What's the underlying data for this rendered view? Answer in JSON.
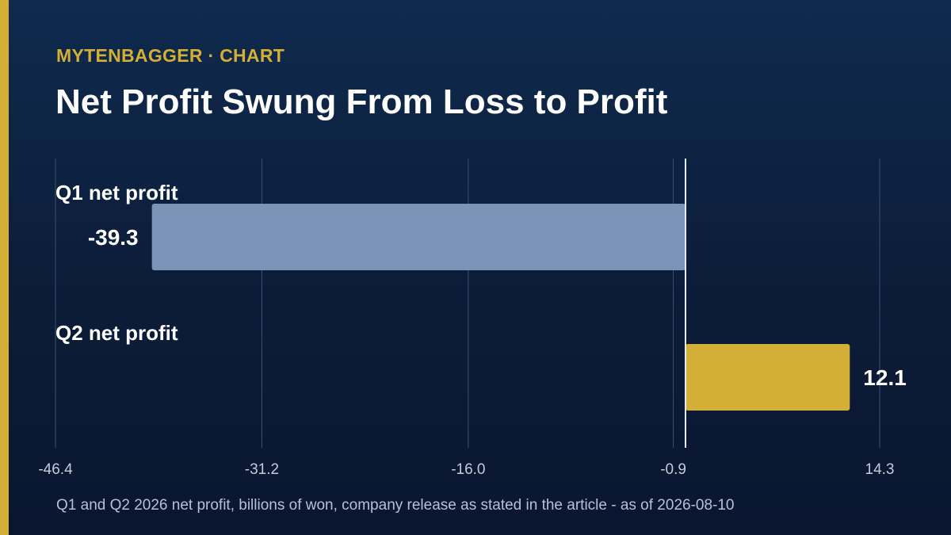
{
  "header": {
    "kicker": "MYTENBAGGER · CHART",
    "title": "Net Profit Swung From Loss to Profit"
  },
  "footnote": "Q1 and Q2 2026 net profit, billions of won, company release as stated in the article - as of 2026-08-10",
  "colors": {
    "accent": "#d4af37",
    "negative_bar": "#7b93b6",
    "positive_bar": "#d4af37",
    "background": "#0d1f3c"
  },
  "chart_data": {
    "type": "bar",
    "orientation": "horizontal",
    "categories": [
      "Q1 net profit",
      "Q2 net profit"
    ],
    "values": [
      -39.3,
      12.1
    ],
    "value_labels": [
      "-39.3",
      "12.1"
    ],
    "xlim": [
      -46.4,
      14.3
    ],
    "x_ticks": [
      -46.4,
      -31.2,
      -16.0,
      -0.9,
      14.3
    ],
    "x_tick_labels": [
      "-46.4",
      "-31.2",
      "-16.0",
      "-0.9",
      "14.3"
    ],
    "zero_line": 0,
    "grid": true,
    "legend": "none"
  }
}
